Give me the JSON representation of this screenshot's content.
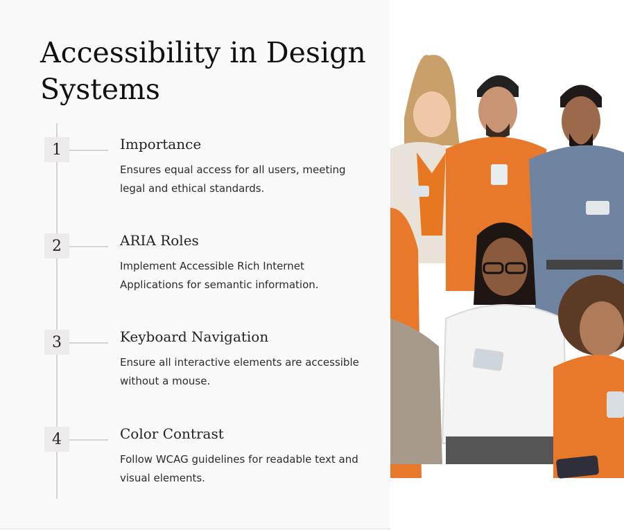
{
  "title": "Accessibility in Design Systems",
  "steps": [
    {
      "number": "1",
      "title": "Importance",
      "description": "Ensures equal access for all users, meeting legal and ethical standards."
    },
    {
      "number": "2",
      "title": "ARIA Roles",
      "description": "Implement Accessible Rich Internet Applications for semantic information."
    },
    {
      "number": "3",
      "title": "Keyboard Navigation",
      "description": "Ensure all interactive elements are accessible without a mouse."
    },
    {
      "number": "4",
      "title": "Color Contrast",
      "description": "Follow WCAG guidelines for readable text and visual elements."
    }
  ],
  "colors": {
    "background": "#f9f9f9",
    "accent": "#e87722",
    "timeline": "#d3d3d3",
    "badge": "#eceaea"
  }
}
